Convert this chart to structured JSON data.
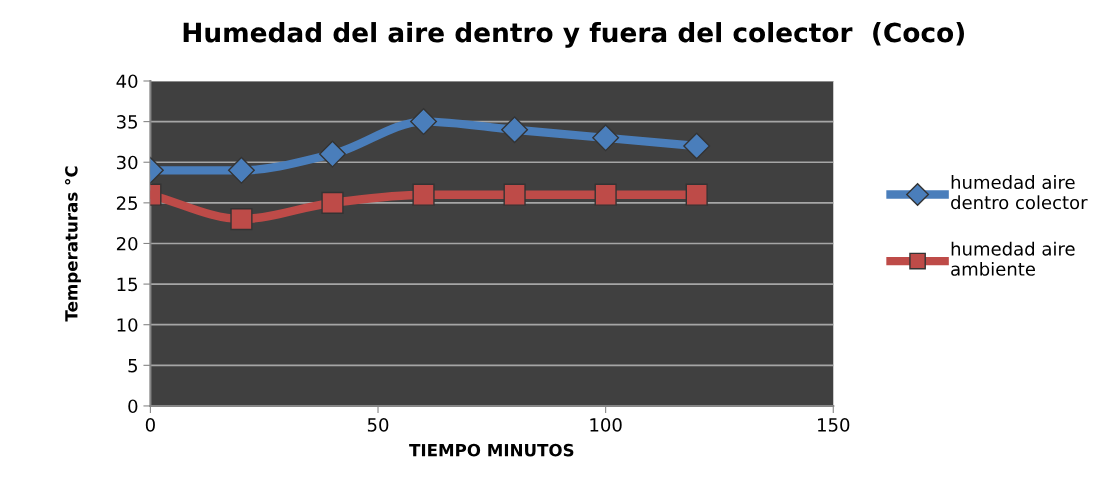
{
  "chart_data": {
    "type": "line",
    "title": "Humedad del aire dentro y fuera del colector  (Coco)",
    "xlabel": "TIEMPO MINUTOS",
    "ylabel": "Temperaturas °C",
    "x": [
      0,
      20,
      40,
      60,
      80,
      100,
      120
    ],
    "series": [
      {
        "name": "humedad aire\ndentro colector",
        "color": "#4a7ebb",
        "marker": "diamond",
        "values": [
          29,
          29,
          31,
          35,
          34,
          33,
          32
        ]
      },
      {
        "name": "humedad aire\nambiente",
        "color": "#be4b48",
        "marker": "square",
        "values": [
          26,
          23,
          25,
          26,
          26,
          26,
          26
        ]
      }
    ],
    "xlim": [
      0,
      150
    ],
    "xticks": [
      0,
      50,
      100,
      150
    ],
    "ylim": [
      0,
      40
    ],
    "yticks": [
      0,
      5,
      10,
      15,
      20,
      25,
      30,
      35,
      40
    ],
    "grid": "y",
    "legend": "right"
  }
}
